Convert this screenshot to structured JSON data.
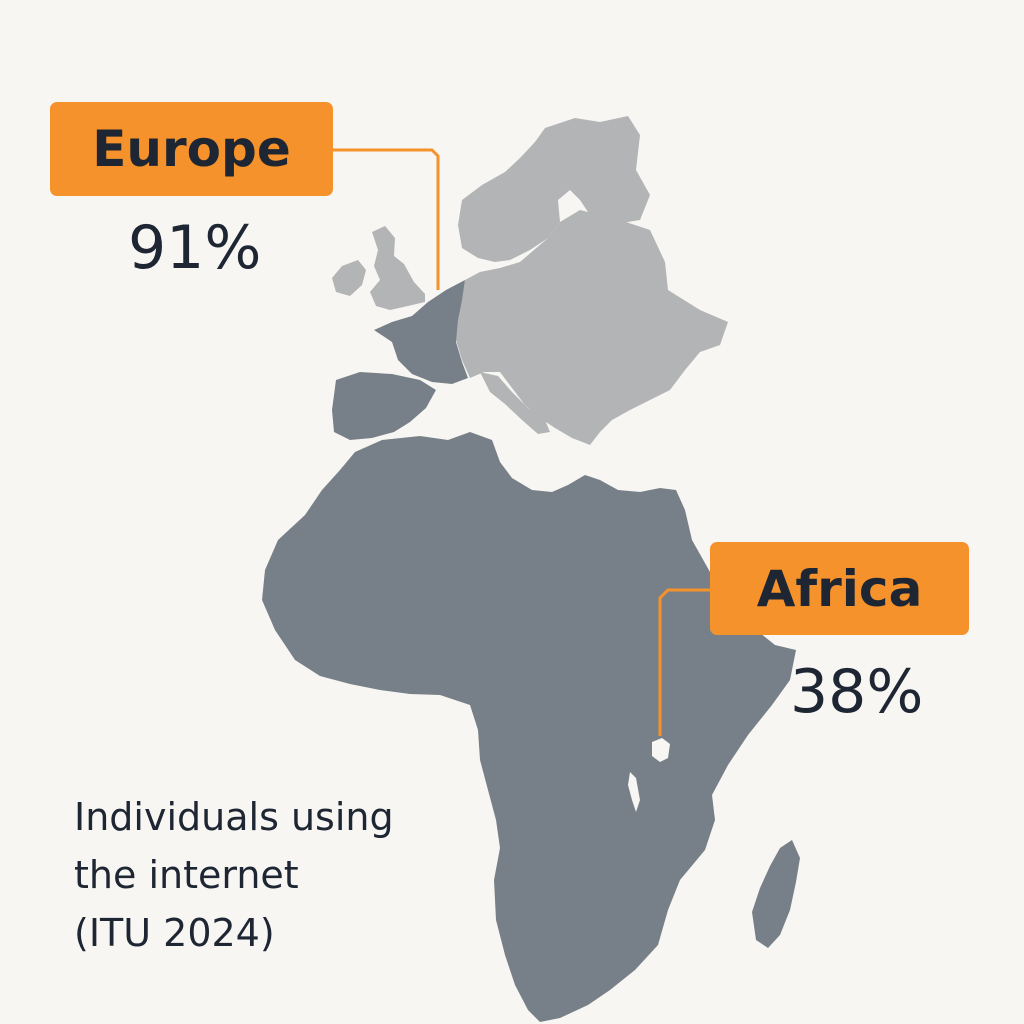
{
  "colors": {
    "background": "#f8f6f2",
    "highlight": "#f5922b",
    "text": "#1e2633",
    "region_dark": "#778088",
    "region_light": "#b2b4b6"
  },
  "labels": {
    "europe": {
      "name": "Europe",
      "value": "91%"
    },
    "africa": {
      "name": "Africa",
      "value": "38%"
    }
  },
  "caption": {
    "line1": "Individuals using",
    "line2": "the internet",
    "line3": "(ITU 2024)"
  }
}
